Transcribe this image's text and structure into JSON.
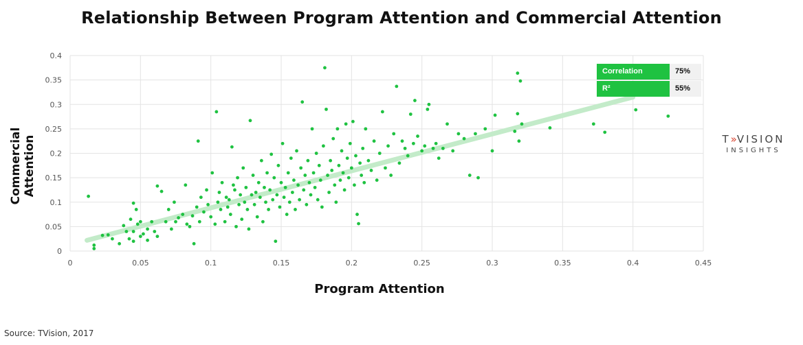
{
  "chart_data": {
    "type": "scatter",
    "title": "Relationship Between Program Attention and Commercial Attention",
    "xlabel": "Program Attention",
    "ylabel": "Commercial Attention",
    "xlim": [
      0,
      0.45
    ],
    "ylim": [
      0,
      0.4
    ],
    "x_ticks": [
      "0",
      "0.05",
      "0.1",
      "0.15",
      "0.2",
      "0.25",
      "0.3",
      "0.35",
      "0.4",
      "0.45"
    ],
    "y_ticks": [
      "0",
      "0.05",
      "0.1",
      "0.15",
      "0.2",
      "0.25",
      "0.3",
      "0.35",
      "0.4"
    ],
    "grid": true,
    "point_color": "#1fc241",
    "trendline_color": "#c3ebc9",
    "trendline": {
      "x": [
        0.012,
        0.4
      ],
      "y": [
        0.022,
        0.315
      ]
    },
    "stats": [
      {
        "label": "Correlation",
        "value": "75%"
      },
      {
        "label": "R²",
        "value": "55%"
      }
    ],
    "points": [
      [
        0.013,
        0.112
      ],
      [
        0.017,
        0.012
      ],
      [
        0.017,
        0.005
      ],
      [
        0.023,
        0.032
      ],
      [
        0.027,
        0.033
      ],
      [
        0.03,
        0.025
      ],
      [
        0.035,
        0.015
      ],
      [
        0.038,
        0.052
      ],
      [
        0.04,
        0.04
      ],
      [
        0.042,
        0.025
      ],
      [
        0.043,
        0.065
      ],
      [
        0.045,
        0.04
      ],
      [
        0.045,
        0.02
      ],
      [
        0.047,
        0.085
      ],
      [
        0.045,
        0.098
      ],
      [
        0.048,
        0.055
      ],
      [
        0.05,
        0.03
      ],
      [
        0.052,
        0.035
      ],
      [
        0.05,
        0.06
      ],
      [
        0.055,
        0.045
      ],
      [
        0.055,
        0.022
      ],
      [
        0.058,
        0.06
      ],
      [
        0.06,
        0.04
      ],
      [
        0.062,
        0.03
      ],
      [
        0.062,
        0.133
      ],
      [
        0.065,
        0.122
      ],
      [
        0.068,
        0.06
      ],
      [
        0.07,
        0.085
      ],
      [
        0.072,
        0.045
      ],
      [
        0.074,
        0.1
      ],
      [
        0.075,
        0.06
      ],
      [
        0.077,
        0.068
      ],
      [
        0.08,
        0.075
      ],
      [
        0.082,
        0.135
      ],
      [
        0.083,
        0.055
      ],
      [
        0.085,
        0.05
      ],
      [
        0.087,
        0.072
      ],
      [
        0.088,
        0.015
      ],
      [
        0.09,
        0.09
      ],
      [
        0.091,
        0.225
      ],
      [
        0.092,
        0.06
      ],
      [
        0.093,
        0.11
      ],
      [
        0.095,
        0.08
      ],
      [
        0.097,
        0.125
      ],
      [
        0.098,
        0.095
      ],
      [
        0.1,
        0.07
      ],
      [
        0.101,
        0.16
      ],
      [
        0.103,
        0.055
      ],
      [
        0.104,
        0.285
      ],
      [
        0.105,
        0.1
      ],
      [
        0.106,
        0.12
      ],
      [
        0.107,
        0.085
      ],
      [
        0.108,
        0.14
      ],
      [
        0.11,
        0.06
      ],
      [
        0.111,
        0.11
      ],
      [
        0.112,
        0.09
      ],
      [
        0.113,
        0.105
      ],
      [
        0.114,
        0.075
      ],
      [
        0.115,
        0.213
      ],
      [
        0.116,
        0.135
      ],
      [
        0.117,
        0.125
      ],
      [
        0.118,
        0.05
      ],
      [
        0.119,
        0.15
      ],
      [
        0.12,
        0.095
      ],
      [
        0.121,
        0.115
      ],
      [
        0.122,
        0.065
      ],
      [
        0.123,
        0.17
      ],
      [
        0.124,
        0.1
      ],
      [
        0.125,
        0.13
      ],
      [
        0.126,
        0.085
      ],
      [
        0.127,
        0.045
      ],
      [
        0.128,
        0.267
      ],
      [
        0.129,
        0.115
      ],
      [
        0.13,
        0.155
      ],
      [
        0.131,
        0.095
      ],
      [
        0.132,
        0.12
      ],
      [
        0.133,
        0.07
      ],
      [
        0.134,
        0.14
      ],
      [
        0.135,
        0.11
      ],
      [
        0.136,
        0.185
      ],
      [
        0.137,
        0.06
      ],
      [
        0.138,
        0.13
      ],
      [
        0.139,
        0.1
      ],
      [
        0.14,
        0.16
      ],
      [
        0.141,
        0.085
      ],
      [
        0.142,
        0.125
      ],
      [
        0.143,
        0.198
      ],
      [
        0.144,
        0.105
      ],
      [
        0.145,
        0.15
      ],
      [
        0.146,
        0.02
      ],
      [
        0.147,
        0.115
      ],
      [
        0.148,
        0.175
      ],
      [
        0.149,
        0.09
      ],
      [
        0.15,
        0.14
      ],
      [
        0.151,
        0.22
      ],
      [
        0.152,
        0.11
      ],
      [
        0.153,
        0.13
      ],
      [
        0.154,
        0.075
      ],
      [
        0.155,
        0.16
      ],
      [
        0.156,
        0.1
      ],
      [
        0.157,
        0.19
      ],
      [
        0.158,
        0.12
      ],
      [
        0.159,
        0.145
      ],
      [
        0.16,
        0.085
      ],
      [
        0.161,
        0.205
      ],
      [
        0.162,
        0.135
      ],
      [
        0.163,
        0.105
      ],
      [
        0.164,
        0.17
      ],
      [
        0.165,
        0.305
      ],
      [
        0.166,
        0.125
      ],
      [
        0.167,
        0.155
      ],
      [
        0.168,
        0.095
      ],
      [
        0.169,
        0.185
      ],
      [
        0.17,
        0.14
      ],
      [
        0.171,
        0.115
      ],
      [
        0.172,
        0.25
      ],
      [
        0.173,
        0.16
      ],
      [
        0.174,
        0.13
      ],
      [
        0.175,
        0.2
      ],
      [
        0.176,
        0.105
      ],
      [
        0.177,
        0.175
      ],
      [
        0.178,
        0.145
      ],
      [
        0.179,
        0.09
      ],
      [
        0.18,
        0.215
      ],
      [
        0.181,
        0.375
      ],
      [
        0.182,
        0.29
      ],
      [
        0.183,
        0.155
      ],
      [
        0.184,
        0.12
      ],
      [
        0.185,
        0.185
      ],
      [
        0.186,
        0.165
      ],
      [
        0.187,
        0.23
      ],
      [
        0.188,
        0.135
      ],
      [
        0.189,
        0.1
      ],
      [
        0.19,
        0.25
      ],
      [
        0.191,
        0.175
      ],
      [
        0.192,
        0.145
      ],
      [
        0.193,
        0.205
      ],
      [
        0.194,
        0.16
      ],
      [
        0.195,
        0.125
      ],
      [
        0.196,
        0.26
      ],
      [
        0.197,
        0.19
      ],
      [
        0.198,
        0.15
      ],
      [
        0.199,
        0.22
      ],
      [
        0.2,
        0.17
      ],
      [
        0.201,
        0.265
      ],
      [
        0.202,
        0.135
      ],
      [
        0.203,
        0.195
      ],
      [
        0.204,
        0.075
      ],
      [
        0.205,
        0.056
      ],
      [
        0.206,
        0.18
      ],
      [
        0.207,
        0.155
      ],
      [
        0.208,
        0.21
      ],
      [
        0.209,
        0.14
      ],
      [
        0.21,
        0.25
      ],
      [
        0.212,
        0.185
      ],
      [
        0.214,
        0.165
      ],
      [
        0.216,
        0.225
      ],
      [
        0.218,
        0.145
      ],
      [
        0.22,
        0.2
      ],
      [
        0.222,
        0.285
      ],
      [
        0.224,
        0.17
      ],
      [
        0.226,
        0.215
      ],
      [
        0.228,
        0.155
      ],
      [
        0.23,
        0.24
      ],
      [
        0.232,
        0.337
      ],
      [
        0.234,
        0.18
      ],
      [
        0.236,
        0.225
      ],
      [
        0.238,
        0.21
      ],
      [
        0.24,
        0.195
      ],
      [
        0.242,
        0.28
      ],
      [
        0.244,
        0.22
      ],
      [
        0.245,
        0.308
      ],
      [
        0.247,
        0.235
      ],
      [
        0.25,
        0.205
      ],
      [
        0.252,
        0.215
      ],
      [
        0.254,
        0.29
      ],
      [
        0.255,
        0.3
      ],
      [
        0.258,
        0.21
      ],
      [
        0.26,
        0.22
      ],
      [
        0.262,
        0.19
      ],
      [
        0.265,
        0.21
      ],
      [
        0.268,
        0.26
      ],
      [
        0.272,
        0.205
      ],
      [
        0.276,
        0.24
      ],
      [
        0.28,
        0.23
      ],
      [
        0.284,
        0.155
      ],
      [
        0.288,
        0.24
      ],
      [
        0.29,
        0.15
      ],
      [
        0.295,
        0.25
      ],
      [
        0.3,
        0.205
      ],
      [
        0.302,
        0.278
      ],
      [
        0.316,
        0.245
      ],
      [
        0.318,
        0.281
      ],
      [
        0.319,
        0.225
      ],
      [
        0.318,
        0.364
      ],
      [
        0.32,
        0.348
      ],
      [
        0.321,
        0.26
      ],
      [
        0.341,
        0.252
      ],
      [
        0.372,
        0.26
      ],
      [
        0.38,
        0.243
      ],
      [
        0.402,
        0.289
      ],
      [
        0.425,
        0.276
      ]
    ]
  },
  "logo": {
    "top_left": "T",
    "top_arrow": "»",
    "top_right": "VISION",
    "bottom": "INSIGHTS"
  },
  "source": "Source: TVision, 2017"
}
